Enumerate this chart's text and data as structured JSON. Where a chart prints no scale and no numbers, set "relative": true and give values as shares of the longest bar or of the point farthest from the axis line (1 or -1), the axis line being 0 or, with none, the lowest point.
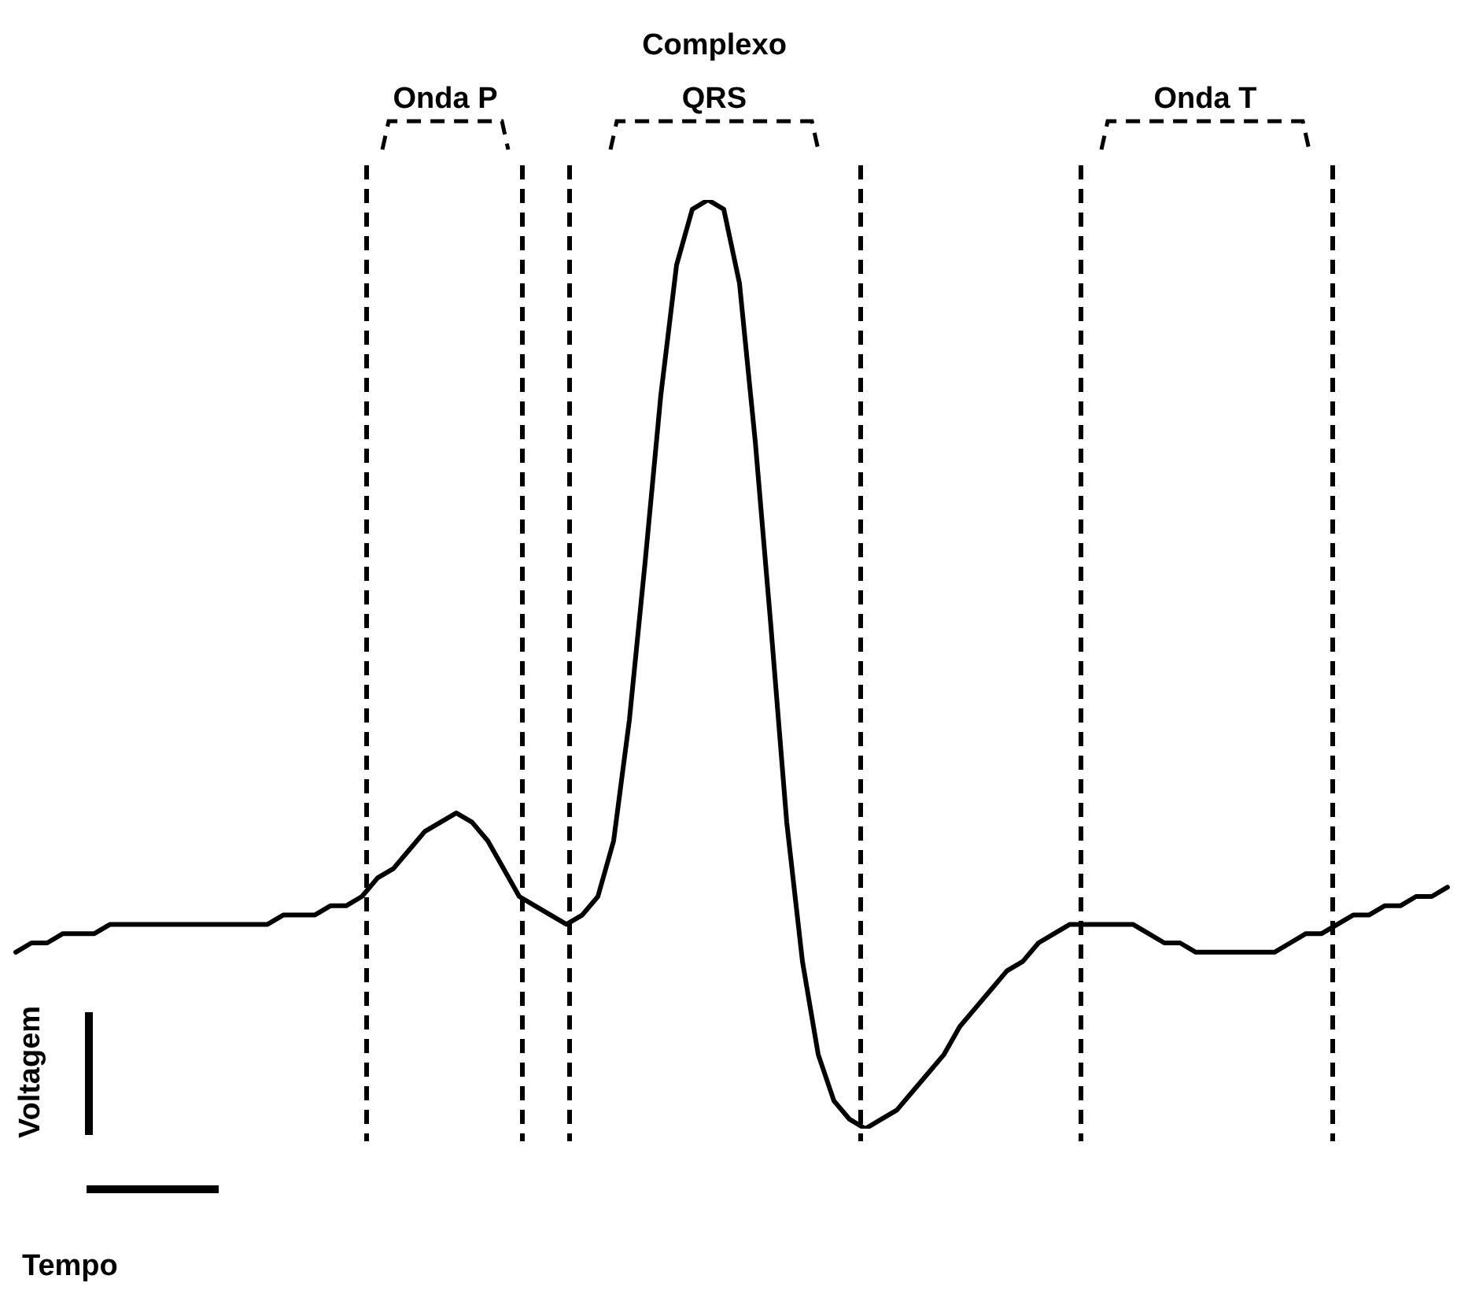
{
  "chart_data": {
    "type": "line",
    "relative": true,
    "xlabel": "Tempo",
    "ylabel": "Voltagem",
    "categories": [
      null,
      null,
      null,
      null,
      null,
      null,
      null,
      null,
      null,
      null,
      null,
      null,
      null,
      null,
      null,
      null,
      null,
      null,
      null,
      null,
      null,
      null,
      null,
      null,
      null,
      null,
      null,
      null,
      null,
      null,
      null,
      null,
      null,
      null,
      null,
      null,
      null,
      null,
      null,
      null,
      null,
      null,
      null,
      null,
      null,
      null,
      null,
      null,
      null,
      null,
      null,
      null,
      null,
      null,
      null,
      null,
      null,
      null,
      null,
      null,
      null,
      null,
      null,
      null,
      null,
      null,
      null,
      null,
      null,
      null,
      null,
      null,
      null,
      null,
      null,
      null,
      null,
      null,
      null,
      null,
      null,
      null,
      null,
      null,
      null,
      null,
      null,
      null,
      null,
      null,
      null,
      null
    ],
    "series": [
      {
        "color": "#000000",
        "values": [
          0.19,
          0.2,
          0.2,
          0.21,
          0.21,
          0.21,
          0.22,
          0.22,
          0.22,
          0.22,
          0.22,
          0.22,
          0.22,
          0.22,
          0.22,
          0.22,
          0.22,
          0.23,
          0.23,
          0.23,
          0.24,
          0.24,
          0.25,
          0.27,
          0.28,
          0.3,
          0.32,
          0.33,
          0.34,
          0.33,
          0.31,
          0.28,
          0.25,
          0.24,
          0.23,
          0.22,
          0.23,
          0.25,
          0.31,
          0.44,
          0.61,
          0.79,
          0.93,
          0.99,
          1,
          0.99,
          0.91,
          0.74,
          0.54,
          0.33,
          0.18,
          0.08,
          0.03,
          0.01,
          0,
          0.01,
          0.02,
          0.04,
          0.06,
          0.08,
          0.11,
          0.13,
          0.15,
          0.17,
          0.18,
          0.2,
          0.21,
          0.22,
          0.22,
          0.22,
          0.22,
          0.22,
          0.21,
          0.2,
          0.2,
          0.19,
          0.19,
          0.19,
          0.19,
          0.19,
          0.19,
          0.2,
          0.21,
          0.21,
          0.22,
          0.23,
          0.23,
          0.24,
          0.24,
          0.25,
          0.25,
          0.26
        ]
      }
    ],
    "annotations": [
      "Onda P",
      "Complexo QRS",
      "Onda T"
    ]
  }
}
